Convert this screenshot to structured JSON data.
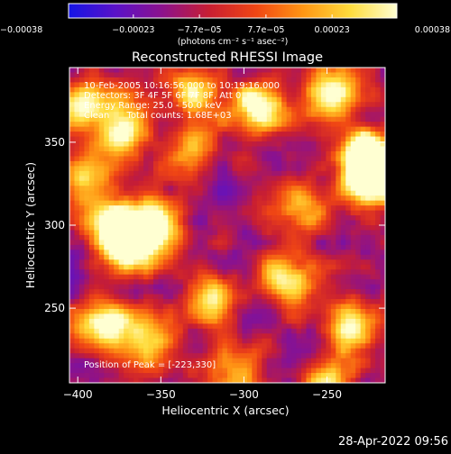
{
  "chart_data": {
    "type": "heatmap",
    "title": "Reconstructed RHESSI Image",
    "xlabel": "Heliocentric X (arcsec)",
    "ylabel": "Heliocentric Y (arcsec)",
    "xlim": [
      -405,
      -215
    ],
    "ylim": [
      205,
      395
    ],
    "x_ticks": [
      -400,
      -350,
      -300,
      -250
    ],
    "y_ticks": [
      250,
      300,
      350
    ],
    "x_tick_labels": [
      "−400",
      "−350",
      "−300",
      "−250"
    ],
    "y_tick_labels": [
      "250",
      "300",
      "350"
    ],
    "colorbar": {
      "min": -0.00038,
      "max": 0.00038,
      "ticks": [
        -0.00038,
        -0.00023,
        -7.7e-05,
        7.7e-05,
        0.00023,
        0.00038
      ],
      "tick_labels": [
        "−0.00038",
        "−0.00023",
        "−7.7e−05",
        "7.7e−05",
        "0.00023",
        "0.00038"
      ],
      "unit_label": "(photons cm⁻² s⁻¹ asec⁻²)",
      "colors": [
        "#1414e6",
        "#5a12c8",
        "#8c128c",
        "#c81e32",
        "#f04614",
        "#ff9614",
        "#ffdc3c",
        "#ffffd2"
      ]
    },
    "annotations": [
      "10-Feb-2005 10:16:56.000 to 10:19:16.000",
      "Detectors: 3F 4F 5F 6F 7F 8F, Att 0",
      "Energy Range: 25.0 - 50.0 keV",
      "Clean      Total counts: 1.68E+03"
    ],
    "peak_label": "Position of Peak = [-223,330]",
    "peak": [
      -223,
      330
    ],
    "sources": [
      {
        "x": -370,
        "y": 290,
        "amp": 1.05
      },
      {
        "x": -352,
        "y": 300,
        "amp": 0.7
      },
      {
        "x": -385,
        "y": 303,
        "amp": 0.55
      },
      {
        "x": -223,
        "y": 330,
        "amp": 1.2
      },
      {
        "x": -230,
        "y": 345,
        "amp": 0.7
      },
      {
        "x": -290,
        "y": 370,
        "amp": 0.85
      },
      {
        "x": -372,
        "y": 360,
        "amp": 0.75
      },
      {
        "x": -400,
        "y": 372,
        "amp": 0.6
      },
      {
        "x": -330,
        "y": 380,
        "amp": 0.55
      },
      {
        "x": -250,
        "y": 380,
        "amp": 0.7
      },
      {
        "x": -385,
        "y": 240,
        "amp": 0.8
      },
      {
        "x": -360,
        "y": 230,
        "amp": 0.55
      },
      {
        "x": -320,
        "y": 255,
        "amp": 0.55
      },
      {
        "x": -275,
        "y": 268,
        "amp": 0.65
      },
      {
        "x": -233,
        "y": 240,
        "amp": 0.7
      },
      {
        "x": -250,
        "y": 205,
        "amp": 0.55
      },
      {
        "x": -300,
        "y": 215,
        "amp": 0.45
      },
      {
        "x": -330,
        "y": 345,
        "amp": 0.45
      },
      {
        "x": -395,
        "y": 330,
        "amp": 0.5
      },
      {
        "x": -265,
        "y": 310,
        "amp": 0.45
      }
    ]
  },
  "footer": {
    "timestamp": "28-Apr-2022 09:56"
  }
}
